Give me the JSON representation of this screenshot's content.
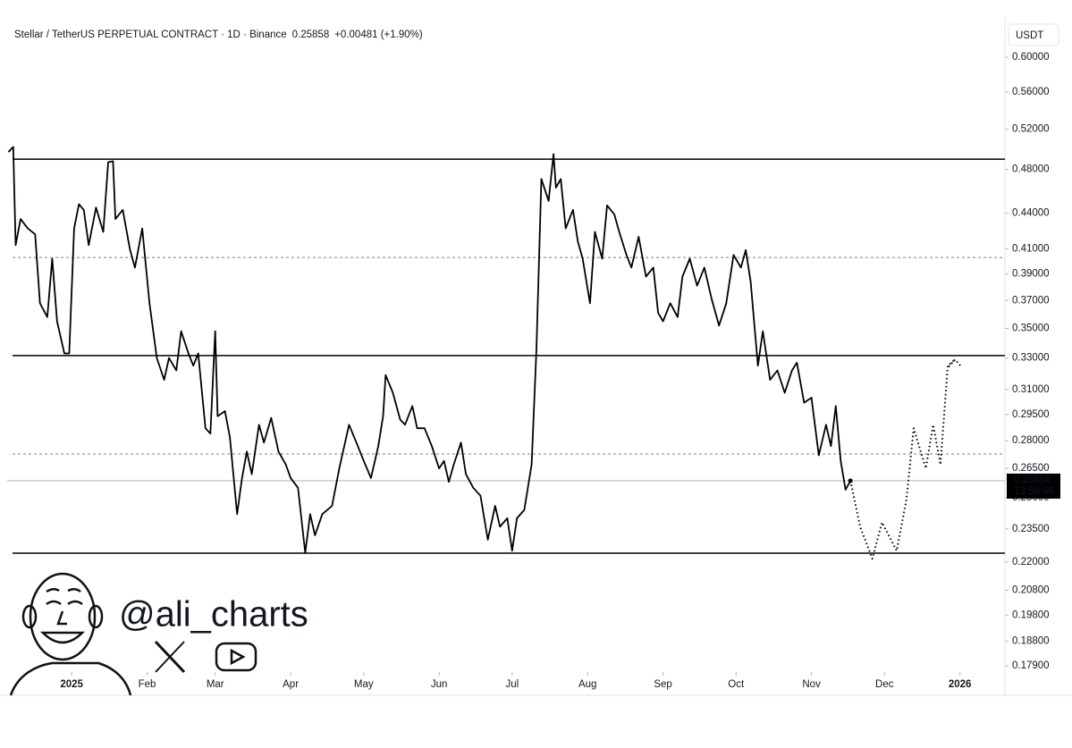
{
  "header": {
    "symbol": "Stellar / TetherUS PERPETUAL CONTRACT · 1D · Binance",
    "price": "0.25858",
    "change": "+0.00481 (+1.90%)",
    "currency": "USDT"
  },
  "watermark": "@ali_charts",
  "chart_data": {
    "type": "line",
    "log_scale": true,
    "xlim": [
      -26.5,
      383.5
    ],
    "xticks": [
      {
        "value": 0,
        "label": "2025"
      },
      {
        "value": 31,
        "label": "Feb"
      },
      {
        "value": 59,
        "label": "Mar"
      },
      {
        "value": 90,
        "label": "Apr"
      },
      {
        "value": 120,
        "label": "May"
      },
      {
        "value": 151,
        "label": "Jun"
      },
      {
        "value": 181,
        "label": "Jul"
      },
      {
        "value": 212,
        "label": "Aug"
      },
      {
        "value": 243,
        "label": "Sep"
      },
      {
        "value": 273,
        "label": "Oct"
      },
      {
        "value": 304,
        "label": "Nov"
      },
      {
        "value": 334,
        "label": "Dec"
      },
      {
        "value": 365,
        "label": "2026"
      }
    ],
    "ylim": [
      0.1768,
      0.6374
    ],
    "yticks": [
      {
        "value": 0.6,
        "label": "0.60000"
      },
      {
        "value": 0.56,
        "label": "0.56000"
      },
      {
        "value": 0.52,
        "label": "0.52000"
      },
      {
        "value": 0.48,
        "label": "0.48000"
      },
      {
        "value": 0.44,
        "label": "0.44000"
      },
      {
        "value": 0.41,
        "label": "0.41000"
      },
      {
        "value": 0.39,
        "label": "0.39000"
      },
      {
        "value": 0.37,
        "label": "0.37000"
      },
      {
        "value": 0.35,
        "label": "0.35000"
      },
      {
        "value": 0.33,
        "label": "0.33000"
      },
      {
        "value": 0.31,
        "label": "0.31000"
      },
      {
        "value": 0.295,
        "label": "0.29500"
      },
      {
        "value": 0.28,
        "label": "0.28000"
      },
      {
        "value": 0.265,
        "label": "0.26500"
      },
      {
        "value": 0.25,
        "label": "0.25000"
      },
      {
        "value": 0.235,
        "label": "0.23500"
      },
      {
        "value": 0.22,
        "label": "0.22000"
      },
      {
        "value": 0.208,
        "label": "0.20800"
      },
      {
        "value": 0.198,
        "label": "0.19800"
      },
      {
        "value": 0.188,
        "label": "0.18800"
      },
      {
        "value": 0.179,
        "label": "0.17900"
      }
    ],
    "series": [
      {
        "color": "#000000",
        "style": "solid",
        "x": [
          -26,
          -24,
          -23,
          -21,
          -18,
          -15,
          -13,
          -10,
          -8,
          -6,
          -3,
          -1,
          1,
          3,
          5,
          7,
          10,
          13,
          15,
          17,
          18,
          21,
          24,
          26,
          29,
          32,
          35,
          38,
          40,
          43,
          45,
          48,
          50,
          52,
          55,
          57,
          59,
          60,
          63,
          65,
          68,
          70,
          72,
          74,
          77,
          79,
          82,
          85,
          88,
          90,
          93,
          96,
          98,
          100,
          103,
          107,
          110,
          114,
          117,
          120,
          123,
          126,
          128,
          129,
          132,
          135,
          137,
          140,
          142,
          145,
          148,
          151,
          153,
          155,
          157,
          160,
          162,
          165,
          168,
          171,
          174,
          176,
          179,
          181,
          183,
          186,
          189,
          191,
          193,
          196,
          198,
          199,
          201,
          203,
          206,
          208,
          210,
          213,
          215,
          218,
          220,
          223,
          225,
          228,
          230,
          233,
          236,
          239,
          241,
          243,
          246,
          249,
          251,
          254,
          257,
          260,
          263,
          266,
          269,
          272,
          275,
          277,
          279,
          282,
          284,
          287,
          290,
          293,
          296,
          298,
          301,
          304,
          307,
          310,
          312,
          314,
          316,
          318,
          320
        ],
        "values": [
          0.497,
          0.502,
          0.413,
          0.435,
          0.427,
          0.422,
          0.368,
          0.358,
          0.402,
          0.355,
          0.333,
          0.333,
          0.427,
          0.448,
          0.443,
          0.413,
          0.445,
          0.424,
          0.487,
          0.488,
          0.435,
          0.443,
          0.409,
          0.395,
          0.427,
          0.368,
          0.33,
          0.316,
          0.33,
          0.322,
          0.348,
          0.333,
          0.325,
          0.333,
          0.287,
          0.284,
          0.348,
          0.294,
          0.297,
          0.282,
          0.242,
          0.26,
          0.274,
          0.262,
          0.289,
          0.279,
          0.293,
          0.274,
          0.267,
          0.26,
          0.255,
          0.224,
          0.242,
          0.232,
          0.242,
          0.246,
          0.265,
          0.289,
          0.279,
          0.269,
          0.26,
          0.277,
          0.294,
          0.319,
          0.308,
          0.292,
          0.289,
          0.3,
          0.287,
          0.287,
          0.277,
          0.265,
          0.269,
          0.258,
          0.267,
          0.279,
          0.262,
          0.255,
          0.251,
          0.23,
          0.246,
          0.236,
          0.24,
          0.225,
          0.24,
          0.244,
          0.267,
          0.336,
          0.471,
          0.451,
          0.495,
          0.463,
          0.471,
          0.427,
          0.443,
          0.416,
          0.402,
          0.368,
          0.424,
          0.402,
          0.447,
          0.439,
          0.424,
          0.405,
          0.395,
          0.42,
          0.388,
          0.395,
          0.361,
          0.355,
          0.368,
          0.358,
          0.388,
          0.402,
          0.381,
          0.395,
          0.371,
          0.352,
          0.368,
          0.405,
          0.395,
          0.409,
          0.384,
          0.325,
          0.348,
          0.316,
          0.322,
          0.308,
          0.322,
          0.327,
          0.302,
          0.305,
          0.272,
          0.289,
          0.277,
          0.3,
          0.269,
          0.254,
          0.25858
        ]
      },
      {
        "color": "#000000",
        "style": "dotted",
        "x": [
          320,
          324,
          329,
          333,
          339,
          343,
          346,
          351,
          354,
          357,
          360,
          363
        ],
        "values": [
          0.25858,
          0.236,
          0.2215,
          0.238,
          0.225,
          0.249,
          0.287,
          0.265,
          0.289,
          0.267,
          0.325,
          0.329
        ]
      }
    ],
    "levels": [
      {
        "value": 0.49,
        "style": "solid"
      },
      {
        "value": 0.3316,
        "style": "solid"
      },
      {
        "value": 0.2239,
        "style": "solid"
      },
      {
        "value": 0.403,
        "style": "dashed"
      },
      {
        "value": 0.2727,
        "style": "dashed"
      }
    ],
    "price_line": {
      "value": 0.25858,
      "label": "0.25858",
      "countdown": "13:59:46"
    }
  }
}
